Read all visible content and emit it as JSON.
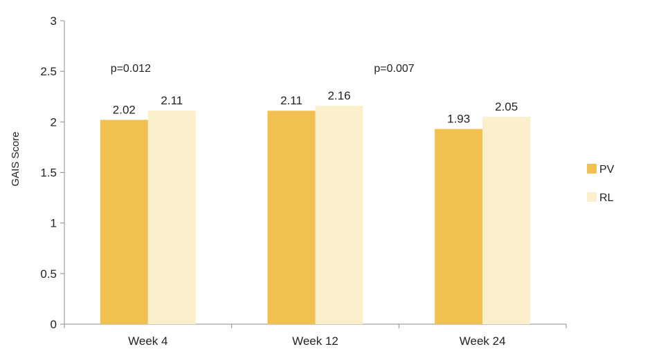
{
  "chart_data": {
    "type": "bar",
    "categories": [
      "Week 4",
      "Week 12",
      "Week 24"
    ],
    "series": [
      {
        "name": "PV",
        "values": [
          2.02,
          2.11,
          1.93
        ],
        "labels": [
          "2.02",
          "2.11",
          "1.93"
        ],
        "color": "#f2c050"
      },
      {
        "name": "RL",
        "values": [
          2.11,
          2.16,
          2.05
        ],
        "labels": [
          "2.11",
          "2.16",
          "2.05"
        ],
        "color": "#fcefcc"
      }
    ],
    "ylabel": "GAIS Score",
    "ylim": [
      0,
      3
    ],
    "yticks": [
      0,
      0.5,
      1,
      1.5,
      2,
      2.5,
      3
    ],
    "ytick_labels": [
      "0",
      "0.5",
      "1",
      "1.5",
      "2",
      "2.5",
      "3"
    ],
    "grid": false,
    "legend_position": "right",
    "annotations": [
      {
        "text": "p=0.012",
        "category": "Week 4"
      },
      {
        "text": "p=0.007",
        "category": "Week 12"
      }
    ]
  }
}
